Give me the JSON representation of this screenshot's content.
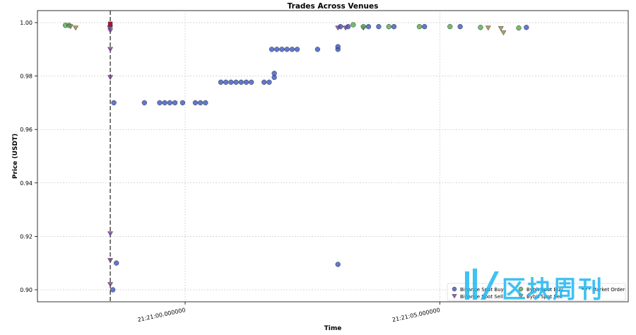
{
  "chart_data": {
    "type": "scatter",
    "title": "Trades Across Venues",
    "xlabel": "Time",
    "ylabel": "Price (USDT)",
    "x_unit": "seconds after 21:20:57.6",
    "x_tick_labels": [
      "21:21:00.000000",
      "21:21:05.000000"
    ],
    "x_tick_values": [
      2.4,
      7.4
    ],
    "y_tick_labels": [
      "0.90",
      "0.92",
      "0.94",
      "0.96",
      "0.98",
      "1.00"
    ],
    "ylim": [
      0.8955,
      1.0045
    ],
    "grid": true,
    "legend_position": "bottom-right",
    "marker_line_label": "Market Order",
    "marker_line_x": 0.93,
    "series": [
      {
        "name": "Binance Spot Buy",
        "marker": "circle",
        "color": "#3b56c4",
        "points": [
          [
            1.0,
            0.97
          ],
          [
            1.05,
            0.91
          ],
          [
            0.98,
            0.9
          ],
          [
            1.6,
            0.97
          ],
          [
            1.9,
            0.97
          ],
          [
            2.0,
            0.97
          ],
          [
            2.1,
            0.97
          ],
          [
            2.2,
            0.97
          ],
          [
            2.35,
            0.97
          ],
          [
            2.6,
            0.97
          ],
          [
            2.7,
            0.97
          ],
          [
            2.8,
            0.97
          ],
          [
            3.1,
            0.9777
          ],
          [
            3.2,
            0.9777
          ],
          [
            3.3,
            0.9777
          ],
          [
            3.4,
            0.9777
          ],
          [
            3.5,
            0.9777
          ],
          [
            3.6,
            0.9777
          ],
          [
            3.7,
            0.9777
          ],
          [
            3.95,
            0.9777
          ],
          [
            4.05,
            0.9777
          ],
          [
            4.15,
            0.9795
          ],
          [
            4.15,
            0.981
          ],
          [
            4.1,
            0.99
          ],
          [
            4.2,
            0.99
          ],
          [
            4.3,
            0.99
          ],
          [
            4.4,
            0.99
          ],
          [
            4.5,
            0.99
          ],
          [
            4.6,
            0.99
          ],
          [
            5.0,
            0.99
          ],
          [
            5.4,
            0.99
          ],
          [
            5.4,
            0.991
          ],
          [
            5.4,
            0.9095
          ],
          [
            5.45,
            0.9985
          ],
          [
            5.6,
            0.9985
          ],
          [
            6.0,
            0.9985
          ],
          [
            6.2,
            0.9985
          ],
          [
            6.5,
            0.9985
          ],
          [
            7.1,
            0.9985
          ],
          [
            7.8,
            0.9985
          ],
          [
            9.1,
            0.9982
          ]
        ]
      },
      {
        "name": "Binance Spot Sell",
        "marker": "triangle-down",
        "color": "#7b3fa0",
        "points": [
          [
            0.92,
            0.998
          ],
          [
            0.93,
            0.997
          ],
          [
            0.93,
            0.99
          ],
          [
            0.93,
            0.9795
          ],
          [
            0.93,
            0.921
          ],
          [
            0.93,
            0.911
          ],
          [
            0.93,
            0.902
          ],
          [
            5.4,
            0.998
          ],
          [
            5.55,
            0.998
          ],
          [
            5.9,
            0.998
          ]
        ]
      },
      {
        "name": "Bybit Spot Buy",
        "marker": "circle",
        "color": "#4cae4c",
        "points": [
          [
            0.05,
            0.999
          ],
          [
            0.12,
            0.999
          ],
          [
            5.7,
            0.9992
          ],
          [
            5.9,
            0.9985
          ],
          [
            6.4,
            0.9985
          ],
          [
            7.0,
            0.9985
          ],
          [
            7.6,
            0.9985
          ],
          [
            8.2,
            0.9982
          ],
          [
            8.95,
            0.998
          ]
        ]
      },
      {
        "name": "Bybit Spot Sell",
        "marker": "triangle-down",
        "color": "#9a8a3a",
        "points": [
          [
            0.15,
            0.9985
          ],
          [
            0.25,
            0.998
          ],
          [
            8.35,
            0.998
          ],
          [
            8.6,
            0.9978
          ],
          [
            8.65,
            0.9962
          ]
        ]
      }
    ]
  },
  "watermark": {
    "text": "区块周刊"
  }
}
